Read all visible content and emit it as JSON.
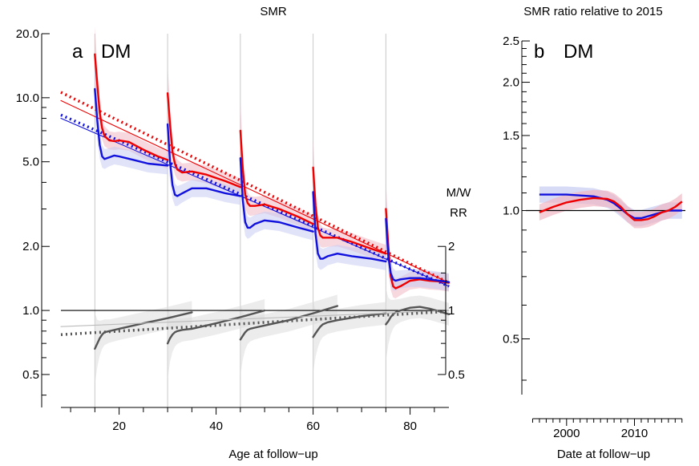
{
  "chart_data": [
    {
      "panel": "a",
      "type": "line",
      "title": "SMR",
      "panel_label": "a",
      "panel_name": "DM",
      "xlabel": "Age at follow−up",
      "ylabel": "",
      "xlim": [
        8,
        88
      ],
      "ylim": [
        0.35,
        20
      ],
      "yscale": "log",
      "grid": false,
      "x_ticks": [
        "20",
        "40",
        "60",
        "80"
      ],
      "y_ticks": [
        "0.5",
        "1.0",
        "2.0",
        "5.0",
        "10.0",
        "20.0"
      ],
      "vlines": [
        15,
        30,
        45,
        60,
        75
      ],
      "ref_line_y": 1.0,
      "colors": {
        "red": "#ee0000",
        "blue": "#1111dd",
        "grey": "#555555",
        "light_grey": "#bbbbbb",
        "red_band": "#f0b8c4",
        "blue_band": "#c8ccf2",
        "grey_band": "#dddddd"
      },
      "right_axis": {
        "label": "M/W\nRR",
        "ticks": [
          "0.5",
          "1",
          "2"
        ],
        "values": [
          0.5,
          1,
          2
        ]
      },
      "series": [
        {
          "color": "red",
          "style": "dotted",
          "x": [
            8,
            88
          ],
          "y": [
            10.6,
            1.35
          ]
        },
        {
          "color": "blue",
          "style": "dotted",
          "x": [
            8,
            88
          ],
          "y": [
            8.3,
            1.3
          ]
        },
        {
          "color": "red",
          "style": "thin",
          "x": [
            8,
            88
          ],
          "y": [
            9.7,
            1.35
          ]
        },
        {
          "color": "blue",
          "style": "thin",
          "x": [
            8,
            88
          ],
          "y": [
            8.0,
            1.3
          ]
        },
        {
          "color": "red",
          "style": "solid",
          "segments": [
            {
              "x": [
                15,
                15.5,
                16,
                16.5,
                17,
                18,
                19,
                20,
                22,
                25,
                28,
                30
              ],
              "y": [
                16,
                11.5,
                8.5,
                7.2,
                6.6,
                6.3,
                6.25,
                6.3,
                6.2,
                5.7,
                5.3,
                5.1
              ]
            },
            {
              "x": [
                30,
                30.5,
                31,
                31.5,
                32,
                33,
                35,
                38,
                42,
                45
              ],
              "y": [
                10.5,
                7.5,
                5.6,
                4.9,
                4.6,
                4.45,
                4.5,
                4.35,
                4.05,
                3.8
              ]
            },
            {
              "x": [
                45,
                45.5,
                46,
                46.5,
                47,
                48,
                50,
                53,
                57,
                60
              ],
              "y": [
                7.0,
                4.6,
                3.5,
                3.2,
                3.1,
                3.1,
                3.15,
                3.0,
                2.75,
                2.55
              ]
            },
            {
              "x": [
                60,
                60.5,
                61,
                61.5,
                62,
                63,
                65,
                68,
                72,
                75
              ],
              "y": [
                4.7,
                3.1,
                2.45,
                2.25,
                2.2,
                2.2,
                2.2,
                2.1,
                1.95,
                1.85
              ]
            },
            {
              "x": [
                75,
                75.5,
                76,
                76.5,
                77,
                78,
                80,
                82,
                84,
                86,
                88
              ],
              "y": [
                3.0,
                2.0,
                1.45,
                1.3,
                1.27,
                1.3,
                1.38,
                1.4,
                1.38,
                1.37,
                1.35
              ]
            }
          ]
        },
        {
          "color": "blue",
          "style": "solid",
          "segments": [
            {
              "x": [
                15,
                15.5,
                16,
                16.5,
                17,
                18,
                19,
                20,
                23,
                26,
                30
              ],
              "y": [
                11,
                7.8,
                6.0,
                5.3,
                5.15,
                5.25,
                5.35,
                5.3,
                5.1,
                4.9,
                4.8
              ]
            },
            {
              "x": [
                30,
                30.5,
                31,
                31.5,
                32,
                33,
                35,
                38,
                42,
                45
              ],
              "y": [
                7.5,
                5.0,
                3.9,
                3.5,
                3.45,
                3.55,
                3.75,
                3.75,
                3.55,
                3.45
              ]
            },
            {
              "x": [
                45,
                45.5,
                46,
                46.5,
                47,
                48,
                50,
                53,
                57,
                60
              ],
              "y": [
                5.2,
                3.3,
                2.6,
                2.45,
                2.45,
                2.55,
                2.65,
                2.6,
                2.45,
                2.35
              ]
            },
            {
              "x": [
                60,
                60.5,
                61,
                61.5,
                62,
                63,
                65,
                68,
                72,
                75
              ],
              "y": [
                3.6,
                2.3,
                1.85,
                1.75,
                1.75,
                1.8,
                1.85,
                1.8,
                1.75,
                1.7
              ]
            },
            {
              "x": [
                75,
                75.5,
                76,
                76.5,
                77,
                78,
                80,
                82,
                84,
                86,
                88
              ],
              "y": [
                2.7,
                1.8,
                1.5,
                1.4,
                1.38,
                1.4,
                1.42,
                1.42,
                1.4,
                1.38,
                1.36
              ]
            }
          ]
        },
        {
          "color": "grey",
          "style": "solid",
          "axis": "right",
          "segments": [
            {
              "x": [
                15,
                15.5,
                16,
                16.5,
                17,
                18,
                20,
                25,
                30,
                35
              ],
              "y": [
                0.66,
                0.7,
                0.74,
                0.77,
                0.79,
                0.8,
                0.82,
                0.87,
                0.92,
                0.98
              ]
            },
            {
              "x": [
                30,
                30.5,
                31,
                31.5,
                32,
                33,
                35,
                40,
                45,
                50
              ],
              "y": [
                0.7,
                0.74,
                0.77,
                0.79,
                0.8,
                0.81,
                0.82,
                0.87,
                0.93,
                1.0
              ]
            },
            {
              "x": [
                45,
                45.5,
                46,
                46.5,
                47,
                48,
                50,
                55,
                60,
                65
              ],
              "y": [
                0.73,
                0.76,
                0.79,
                0.81,
                0.82,
                0.83,
                0.85,
                0.9,
                0.97,
                1.05
              ]
            },
            {
              "x": [
                60,
                60.5,
                61,
                61.5,
                62,
                63,
                65,
                70,
                75
              ],
              "y": [
                0.75,
                0.78,
                0.81,
                0.84,
                0.86,
                0.88,
                0.9,
                0.94,
                0.97
              ]
            },
            {
              "x": [
                75,
                75.5,
                76,
                76.5,
                77,
                78,
                80,
                82,
                84,
                86,
                88
              ],
              "y": [
                0.86,
                0.89,
                0.93,
                0.96,
                0.98,
                1.0,
                1.03,
                1.04,
                1.02,
                0.99,
                0.96
              ]
            }
          ]
        },
        {
          "color": "light_grey",
          "style": "thin",
          "axis": "right",
          "x": [
            8,
            88
          ],
          "y": [
            0.84,
            1.0
          ]
        },
        {
          "color": "grey",
          "style": "dotted",
          "axis": "right",
          "x": [
            8,
            88
          ],
          "y": [
            0.77,
            0.99
          ]
        }
      ]
    },
    {
      "panel": "b",
      "type": "line",
      "title": "SMR ratio relative to 2015",
      "panel_label": "b",
      "panel_name": "DM",
      "xlabel": "Date at follow−up",
      "ylabel": "",
      "xlim": [
        1994,
        2017.5
      ],
      "ylim": [
        0.37,
        2.6
      ],
      "yscale": "log",
      "grid": false,
      "x_ticks": [
        "2000",
        "2010"
      ],
      "y_ticks": [
        "0.5",
        "1.0",
        "1.5",
        "2.0",
        "2.5"
      ],
      "ref_line_y": 1.0,
      "series": [
        {
          "color": "blue",
          "style": "solid",
          "x": [
            1996,
            1998,
            2000,
            2002,
            2004,
            2006,
            2007,
            2008,
            2009,
            2010,
            2011,
            2012,
            2013,
            2014,
            2015,
            2016,
            2017
          ],
          "y": [
            1.09,
            1.09,
            1.09,
            1.085,
            1.08,
            1.06,
            1.04,
            1.01,
            0.98,
            0.96,
            0.96,
            0.97,
            0.98,
            0.99,
            1.0,
            1.0,
            1.0
          ]
        },
        {
          "color": "red",
          "style": "solid",
          "x": [
            1996,
            1998,
            2000,
            2002,
            2004,
            2006,
            2007,
            2008,
            2009,
            2010,
            2011,
            2012,
            2013,
            2014,
            2015,
            2016,
            2017
          ],
          "y": [
            0.99,
            1.02,
            1.045,
            1.06,
            1.07,
            1.065,
            1.05,
            1.02,
            0.98,
            0.95,
            0.95,
            0.955,
            0.97,
            0.99,
            1.0,
            1.02,
            1.05
          ]
        }
      ]
    }
  ]
}
